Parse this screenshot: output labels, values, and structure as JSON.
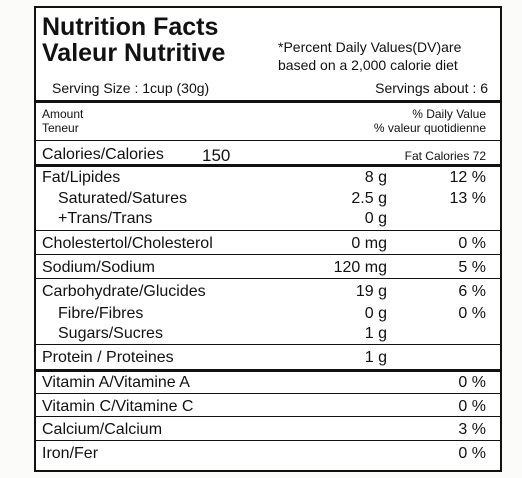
{
  "header": {
    "title_en": "Nutrition Facts",
    "title_fr": "Valeur Nutritive",
    "note": [
      "*Percent Daily Values(DV)are",
      "based on a 2,000 calorie diet"
    ],
    "serving_size": "Serving Size : 1cup (30g)",
    "servings": "Servings about : 6"
  },
  "columns": {
    "amount_en": "Amount",
    "amount_fr": "Teneur",
    "dv_en": "% Daily Value",
    "dv_fr": "% valeur quotidienne"
  },
  "calories": {
    "label": "Calories/Calories",
    "value": "150",
    "fat_calories": "Fat Calories 72"
  },
  "rows": [
    {
      "name": "Fat/Lipides",
      "amount": "8 g",
      "dv": "12 %"
    },
    {
      "name": "Saturated/Satures",
      "amount": "2.5 g",
      "dv": "13 %"
    },
    {
      "name": "+Trans/Trans",
      "amount": "0 g"
    },
    {
      "name": "Cholestertol/Cholesterol",
      "amount": "0 mg",
      "dv": "0 %"
    },
    {
      "name": "Sodium/Sodium",
      "amount": "120 mg",
      "dv": "5 %"
    },
    {
      "name": "Carbohydrate/Glucides",
      "amount": "19 g",
      "dv": "6 %"
    },
    {
      "name": "Fibre/Fibres",
      "amount": "0 g",
      "dv": "0 %"
    },
    {
      "name": "Sugars/Sucres",
      "amount": "1 g"
    },
    {
      "name": "Protein / Proteines",
      "amount": "1 g"
    },
    {
      "name": "Vitamin A/Vitamine A",
      "dv": "0 %"
    },
    {
      "name": "Vitamin C/Vitamine C",
      "dv": "0 %"
    },
    {
      "name": "Calcium/Calcium",
      "dv": "3 %"
    },
    {
      "name": "Iron/Fer",
      "dv": "0 %"
    }
  ]
}
